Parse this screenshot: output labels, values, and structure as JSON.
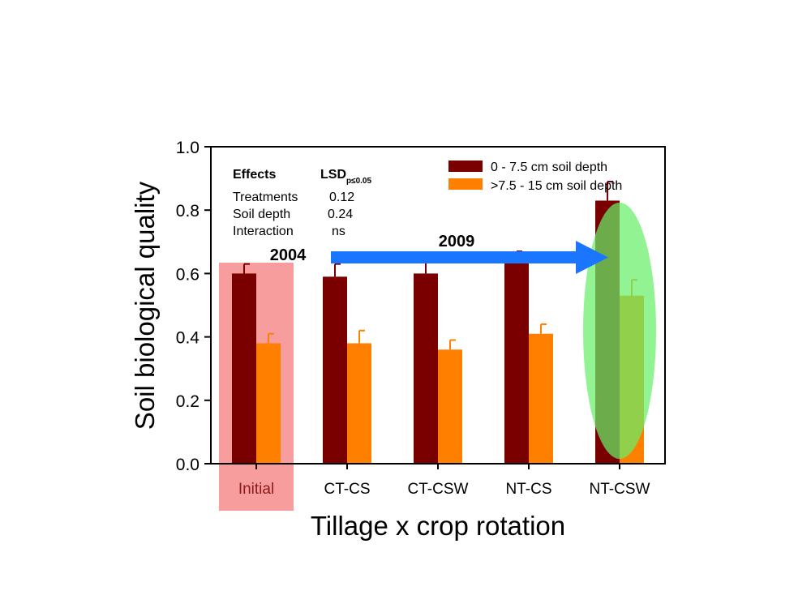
{
  "chart_data": {
    "type": "bar",
    "xlabel": "Tillage x crop rotation",
    "ylabel": "Soil biological quality",
    "ylim": [
      0,
      1.0
    ],
    "yticks": [
      "0.0",
      "0.2",
      "0.4",
      "0.6",
      "0.8",
      "1.0"
    ],
    "categories": [
      "Initial",
      "CT-CS",
      "CT-CSW",
      "NT-CS",
      "NT-CSW"
    ],
    "series": [
      {
        "name": "0 - 7.5 cm soil depth",
        "color": "#7a0000",
        "values": [
          0.6,
          0.59,
          0.6,
          0.64,
          0.83
        ],
        "errors": [
          0.03,
          0.04,
          0.05,
          0.03,
          0.06
        ]
      },
      {
        "name": ">7.5 - 15 cm soil depth",
        "color": "#ff8000",
        "values": [
          0.38,
          0.38,
          0.36,
          0.41,
          0.53
        ],
        "errors": [
          0.03,
          0.04,
          0.03,
          0.03,
          0.05
        ]
      }
    ],
    "legend_position": "top-right",
    "effects_table": {
      "header": [
        "Effects",
        "LSD",
        "p≤0.05"
      ],
      "rows": [
        [
          "Treatments",
          "0.12"
        ],
        [
          "Soil depth",
          "0.24"
        ],
        [
          "Interaction",
          "ns"
        ]
      ]
    },
    "annotations": {
      "year_start": "2004",
      "year_end": "2009"
    },
    "colors": {
      "initial_highlight": "#f47c7c",
      "ntcsw_highlight": "#66ee66",
      "arrow": "#1a75ff"
    }
  }
}
